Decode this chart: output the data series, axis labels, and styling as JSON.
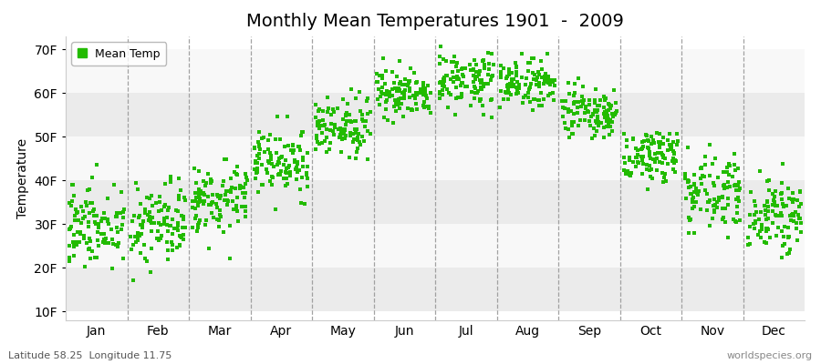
{
  "title": "Monthly Mean Temperatures 1901  -  2009",
  "ylabel": "Temperature",
  "month_labels": [
    "Jan",
    "Feb",
    "Mar",
    "Apr",
    "May",
    "Jun",
    "Jul",
    "Aug",
    "Sep",
    "Oct",
    "Nov",
    "Dec"
  ],
  "month_positions": [
    0.5,
    1.5,
    2.5,
    3.5,
    4.5,
    5.5,
    6.5,
    7.5,
    8.5,
    9.5,
    10.5,
    11.5
  ],
  "vline_positions": [
    1,
    2,
    3,
    4,
    5,
    6,
    7,
    8,
    9,
    10,
    11
  ],
  "ytick_labels": [
    "10F",
    "20F",
    "30F",
    "40F",
    "50F",
    "60F",
    "70F"
  ],
  "ytick_values": [
    10,
    20,
    30,
    40,
    50,
    60,
    70
  ],
  "monthly_means": [
    30,
    30,
    36,
    44,
    52,
    60,
    63,
    62,
    55,
    46,
    38,
    32
  ],
  "monthly_stds": [
    5,
    5,
    4,
    4,
    3,
    3,
    3,
    3,
    3,
    3,
    4,
    4
  ],
  "year_start": 1901,
  "year_end": 2009,
  "seed": 42,
  "ylim": [
    8,
    73
  ],
  "xlim": [
    0,
    12
  ],
  "dot_color": "#22bb00",
  "dot_size": 5,
  "fig_bg_color": "#ffffff",
  "plot_bg_color": "#ffffff",
  "band_colors": [
    "#ebebeb",
    "#f8f8f8",
    "#ebebeb",
    "#f8f8f8",
    "#ebebeb",
    "#f8f8f8"
  ],
  "vline_color": "#999999",
  "title_fontsize": 14,
  "legend_label": "Mean Temp",
  "footnote_left": "Latitude 58.25  Longitude 11.75",
  "footnote_right": "worldspecies.org"
}
